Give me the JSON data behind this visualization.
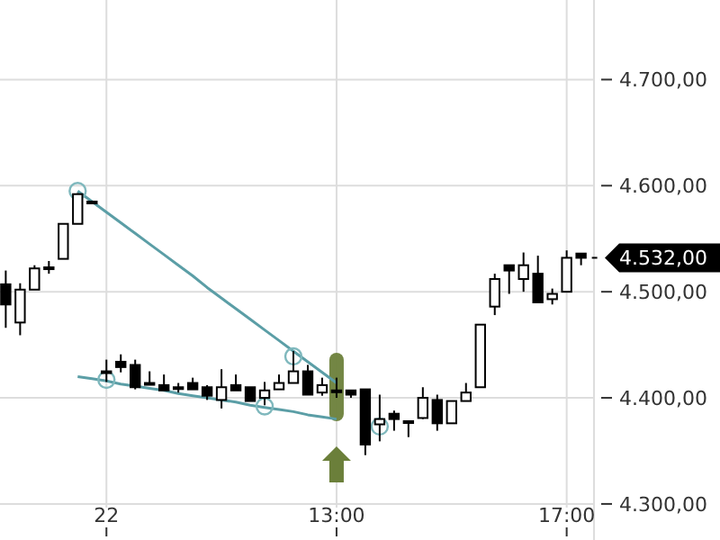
{
  "chart_data": {
    "type": "candlestick",
    "ylim": [
      4266,
      4775
    ],
    "categories": [
      null,
      null,
      null,
      null,
      null,
      null,
      null,
      "22",
      null,
      null,
      null,
      null,
      null,
      null,
      null,
      null,
      null,
      null,
      null,
      null,
      null,
      null,
      null,
      "13:00",
      null,
      null,
      null,
      null,
      null,
      null,
      null,
      null,
      null,
      null,
      null,
      null,
      null,
      null,
      null,
      "17:00",
      null
    ],
    "yticks": [
      {
        "value": 4300,
        "label": "4.300,00"
      },
      {
        "value": 4400,
        "label": "4.400,00"
      },
      {
        "value": 4500,
        "label": "4.500,00"
      },
      {
        "value": 4600,
        "label": "4.600,00"
      },
      {
        "value": 4700,
        "label": "4.700,00"
      }
    ],
    "grid": true,
    "annotations": [
      "4.532,00"
    ],
    "series": [
      {
        "color": "#000000",
        "ohlc": [
          [
            4507,
            4520,
            4466,
            4488
          ],
          [
            4471,
            4508,
            4459,
            4502
          ],
          [
            4502,
            4525,
            4502,
            4522
          ],
          [
            4523,
            4529,
            4517,
            4523
          ],
          [
            4531,
            4564,
            4531,
            4564
          ],
          [
            4564,
            4593,
            4564,
            4592
          ],
          [
            4585,
            4585,
            4585,
            4585
          ],
          [
            4425,
            4436,
            4415,
            4425
          ],
          [
            4434,
            4441,
            4424,
            4429
          ],
          [
            4431,
            4436,
            4408,
            4410
          ],
          [
            4414,
            4425,
            4414,
            4414
          ],
          [
            4412,
            4422,
            4407,
            4407
          ],
          [
            4410,
            4414,
            4405,
            4410
          ],
          [
            4414,
            4419,
            4408,
            4408
          ],
          [
            4410,
            4412,
            4398,
            4402
          ],
          [
            4398,
            4427,
            4390,
            4410
          ],
          [
            4412,
            4422,
            4407,
            4407
          ],
          [
            4410,
            4410,
            4397,
            4397
          ],
          [
            4400,
            4415,
            4393,
            4407
          ],
          [
            4408,
            4422,
            4408,
            4414
          ],
          [
            4414,
            4444,
            4414,
            4425
          ],
          [
            4425,
            4431,
            4403,
            4403
          ],
          [
            4405,
            4419,
            4402,
            4412
          ],
          [
            4407,
            4419,
            4400,
            4407
          ],
          [
            4407,
            4407,
            4400,
            4403
          ],
          [
            4408,
            4408,
            4346,
            4356
          ],
          [
            4375,
            4403,
            4359,
            4380
          ],
          [
            4385,
            4388,
            4369,
            4380
          ],
          [
            4378,
            4378,
            4363,
            4378
          ],
          [
            4381,
            4410,
            4380,
            4400
          ],
          [
            4398,
            4403,
            4369,
            4376
          ],
          [
            4376,
            4397,
            4376,
            4397
          ],
          [
            4397,
            4414,
            4397,
            4405
          ],
          [
            4410,
            4469,
            4410,
            4469
          ],
          [
            4486,
            4517,
            4478,
            4512
          ],
          [
            4525,
            4525,
            4498,
            4520
          ],
          [
            4512,
            4537,
            4500,
            4525
          ],
          [
            4517,
            4534,
            4490,
            4490
          ],
          [
            4493,
            4503,
            4488,
            4498
          ],
          [
            4500,
            4539,
            4500,
            4532
          ],
          [
            4536,
            4536,
            4525,
            4532
          ]
        ]
      },
      {
        "type": "line",
        "color": "#5b9ea6",
        "marker": "none",
        "values": [
          null,
          null,
          null,
          null,
          null,
          4595,
          4585,
          4575,
          4565,
          4555,
          4545,
          4535,
          4525,
          4515,
          4504,
          4494,
          4484,
          4474,
          4464,
          4454,
          4444,
          4434,
          4424,
          4414,
          null,
          null,
          null,
          null,
          null,
          null,
          null,
          null,
          null,
          null,
          null,
          null,
          null,
          null,
          null,
          null,
          null
        ]
      },
      {
        "type": "line",
        "color": "#5b9ea6",
        "marker": "none",
        "values": [
          null,
          null,
          null,
          null,
          null,
          4420,
          4418,
          4416,
          4413,
          4411,
          4409,
          4407,
          4404,
          4402,
          4400,
          4398,
          4396,
          4393,
          4391,
          4389,
          4387,
          4384,
          4382,
          4380,
          null,
          null,
          null,
          null,
          null,
          null,
          null,
          null,
          null,
          null,
          null,
          null,
          null,
          null,
          null,
          null,
          null
        ]
      },
      {
        "type": "scatter",
        "color": "#7fb8bd",
        "marker": "circle",
        "values": [
          null,
          null,
          null,
          null,
          null,
          4595,
          null,
          4417,
          null,
          null,
          null,
          null,
          null,
          null,
          null,
          null,
          null,
          null,
          4392,
          null,
          4439,
          null,
          null,
          null,
          null,
          null,
          4373,
          null,
          null,
          null,
          null,
          null,
          null,
          null,
          null,
          null,
          null,
          null,
          null,
          null,
          null
        ]
      }
    ]
  }
}
